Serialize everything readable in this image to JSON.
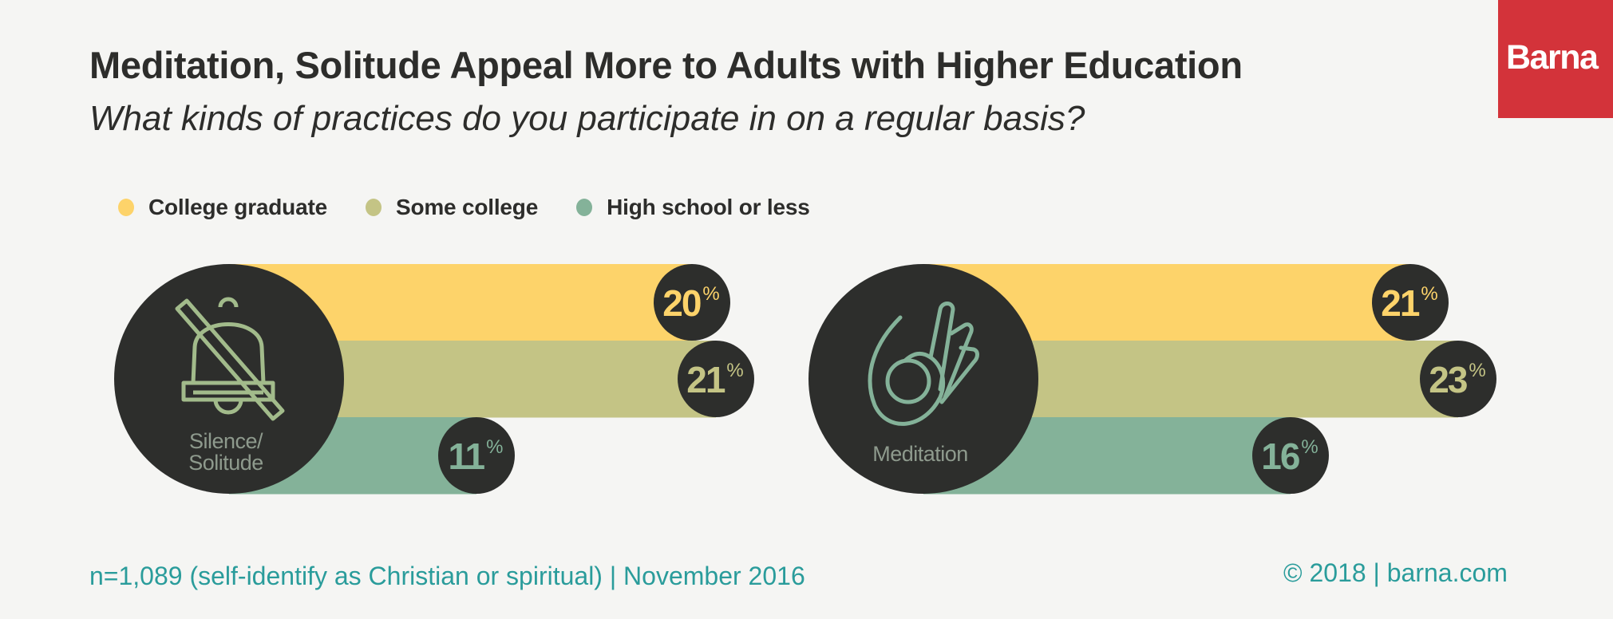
{
  "title": "Meditation, Solitude Appeal More to Adults with Higher Education",
  "subtitle": "What kinds of practices do you participate in on a regular basis?",
  "logo_text": "Barna",
  "footer": {
    "sample": "n=1,089 (self-identify as Christian or spiritual) | November 2016",
    "copyright": "© 2018 | barna.com"
  },
  "colors": {
    "background": "#f5f5f3",
    "circle": "#2d2e2c",
    "college_graduate": "#fdd36a",
    "some_college": "#c4c485",
    "high_school_or_less": "#84b299",
    "brand_red": "#d3333a",
    "footer_teal": "#2a9c9b"
  },
  "chart_data": {
    "type": "bar",
    "orientation": "horizontal",
    "title": "Meditation, Solitude Appeal More to Adults with Higher Education",
    "subtitle": "What kinds of practices do you participate in on a regular basis?",
    "unit": "%",
    "legend_position": "top-left",
    "categories": [
      "Silence/ Solitude",
      "Meditation"
    ],
    "category_lines": [
      [
        "Silence/",
        "Solitude"
      ],
      [
        "Meditation"
      ]
    ],
    "category_icons": [
      "bell-slash-icon",
      "mudra-hand-icon"
    ],
    "series": [
      {
        "name": "College graduate",
        "color": "#fdd36a",
        "values": [
          20,
          21
        ]
      },
      {
        "name": "Some college",
        "color": "#c4c485",
        "values": [
          21,
          23
        ]
      },
      {
        "name": "High school or less",
        "color": "#84b299",
        "values": [
          11,
          16
        ]
      }
    ]
  }
}
